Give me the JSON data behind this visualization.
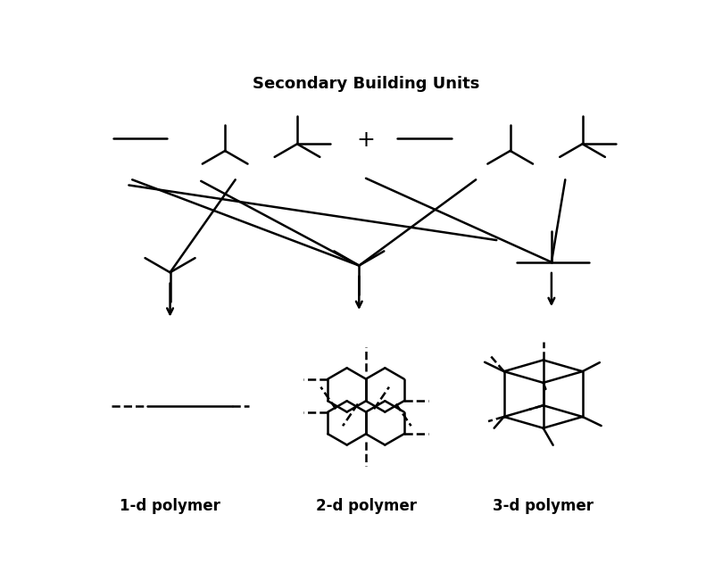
{
  "title": "Secondary Building Units",
  "title_fontsize": 13,
  "title_fontweight": "bold",
  "bg_color": "#ffffff",
  "line_color": "#000000",
  "label_1d": "1-d polymer",
  "label_2d": "2-d polymer",
  "label_3d": "3-d polymer",
  "label_fontsize": 12,
  "lw": 1.8
}
